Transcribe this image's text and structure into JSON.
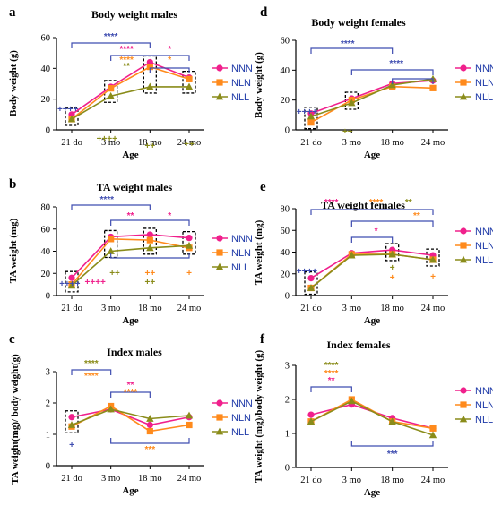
{
  "colors": {
    "NNN": "#f0208c",
    "NLN": "#ff8a1c",
    "NLL": "#8a8c1a",
    "bracket": "#3f4db0"
  },
  "chart_data": [
    {
      "id": "a",
      "panel_label": "a",
      "type": "line",
      "title": "Body weight males",
      "xlabel": "Age",
      "ylabel": "Body weight (g)",
      "categories": [
        "21 do",
        "3 mo",
        "18 mo",
        "24 mo"
      ],
      "ylim": [
        0,
        60
      ],
      "yticks": [
        "0",
        "20",
        "40",
        "60"
      ],
      "series": [
        {
          "name": "NNN",
          "values": [
            10,
            28,
            44,
            34
          ]
        },
        {
          "name": "NLN",
          "values": [
            7,
            27,
            41,
            33
          ]
        },
        {
          "name": "NLL",
          "values": [
            7,
            22,
            28,
            28
          ]
        }
      ],
      "annotations": [
        "****",
        "****",
        "*",
        "****",
        "**",
        "*",
        "++++",
        "++++",
        "++",
        "++"
      ]
    },
    {
      "id": "d",
      "panel_label": "d",
      "type": "line",
      "title": "Body weight females",
      "xlabel": "Age",
      "ylabel": "Body weight (g)",
      "categories": [
        "21 do",
        "3 mo",
        "18 mo",
        "24 mo"
      ],
      "ylim": [
        0,
        60
      ],
      "yticks": [
        "0",
        "20",
        "40",
        "60"
      ],
      "series": [
        {
          "name": "NNN",
          "values": [
            11,
            21,
            31,
            33
          ]
        },
        {
          "name": "NLN",
          "values": [
            5,
            20,
            29,
            28
          ]
        },
        {
          "name": "NLL",
          "values": [
            9,
            18,
            30,
            34
          ]
        }
      ],
      "annotations": [
        "****",
        "****",
        "++++",
        "++"
      ]
    },
    {
      "id": "b",
      "panel_label": "b",
      "type": "line",
      "title": "TA weight males",
      "xlabel": "Age",
      "ylabel": "TA weight (mg)",
      "categories": [
        "21 do",
        "3 mo",
        "18 mo",
        "24 mo"
      ],
      "ylim": [
        0,
        80
      ],
      "yticks": [
        "0",
        "20",
        "40",
        "60",
        "80"
      ],
      "series": [
        {
          "name": "NNN",
          "values": [
            16,
            53,
            55,
            52
          ]
        },
        {
          "name": "NLN",
          "values": [
            10,
            51,
            50,
            43
          ]
        },
        {
          "name": "NLL",
          "values": [
            9,
            40,
            43,
            45
          ]
        }
      ],
      "annotations": [
        "****",
        "**",
        "*",
        "++++",
        "++++",
        "++",
        "++",
        "++",
        "+"
      ]
    },
    {
      "id": "e",
      "panel_label": "e",
      "type": "line",
      "title": "TA weight females",
      "xlabel": "Age",
      "ylabel": "TA weight (mg)",
      "categories": [
        "21 do",
        "3 mo",
        "18 mo",
        "24 mo"
      ],
      "ylim": [
        0,
        80
      ],
      "yticks": [
        "0",
        "20",
        "40",
        "60",
        "80"
      ],
      "series": [
        {
          "name": "NNN",
          "values": [
            16,
            39,
            42,
            37
          ]
        },
        {
          "name": "NLN",
          "values": [
            7,
            38,
            38,
            33
          ]
        },
        {
          "name": "NLL",
          "values": [
            7,
            37,
            38,
            33
          ]
        }
      ],
      "annotations": [
        "****",
        "****",
        "**",
        "**",
        "*",
        "++++",
        "+",
        "+",
        "+"
      ]
    },
    {
      "id": "c",
      "panel_label": "c",
      "type": "line",
      "title": "Index males",
      "xlabel": "Age",
      "ylabel": "TA weight(mg)/ body weight(g)",
      "categories": [
        "21 do",
        "3 mo",
        "18 mo",
        "24 mo"
      ],
      "ylim": [
        0,
        3
      ],
      "yticks": [
        "0",
        "1",
        "2",
        "3"
      ],
      "series": [
        {
          "name": "NNN",
          "values": [
            1.55,
            1.8,
            1.3,
            1.55
          ]
        },
        {
          "name": "NLN",
          "values": [
            1.25,
            1.9,
            1.1,
            1.3
          ]
        },
        {
          "name": "NLL",
          "values": [
            1.3,
            1.8,
            1.5,
            1.6
          ]
        }
      ],
      "annotations": [
        "****",
        "****",
        "**",
        "****",
        "***",
        "+"
      ]
    },
    {
      "id": "f",
      "panel_label": "f",
      "type": "line",
      "title": "Index females",
      "xlabel": "Age",
      "ylabel": "TA weight (mg)/body weight (g)",
      "categories": [
        "21 do",
        "3 mo",
        "18 mo",
        "24 mo"
      ],
      "ylim": [
        0,
        3
      ],
      "yticks": [
        "0",
        "1",
        "2",
        "3"
      ],
      "series": [
        {
          "name": "NNN",
          "values": [
            1.55,
            1.85,
            1.45,
            1.15
          ]
        },
        {
          "name": "NLN",
          "values": [
            1.35,
            2.0,
            1.35,
            1.15
          ]
        },
        {
          "name": "NLL",
          "values": [
            1.35,
            1.95,
            1.35,
            0.95
          ]
        }
      ],
      "annotations": [
        "****",
        "****",
        "**",
        "***"
      ]
    }
  ]
}
